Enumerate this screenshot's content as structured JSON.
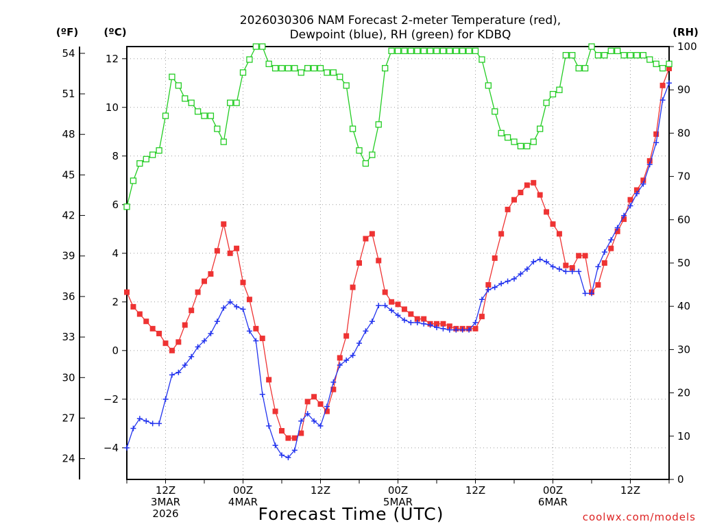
{
  "chart_data": {
    "type": "line",
    "title": [
      "2026030306 NAM Forecast 2-meter Temperature (red),",
      "Dewpoint (blue), RH (green) for KDBQ"
    ],
    "xlabel": "Forecast Time (UTC)",
    "ylabel_left_f": "(ºF)",
    "ylabel_left_c": "(ºC)",
    "ylabel_right": "(RH)",
    "credit": "coolwx.com/models",
    "x_unit": "forecast hour (0 = 2026-03-03 06Z)",
    "xlim": [
      0,
      84
    ],
    "ylim_c": [
      -5.3,
      12.5
    ],
    "ylim_f": [
      22.46,
      54.5
    ],
    "ylim_rh": [
      0,
      100
    ],
    "yticks_c": [
      -4,
      -2,
      0,
      2,
      4,
      6,
      8,
      10,
      12
    ],
    "yticks_f": [
      24,
      27,
      30,
      33,
      36,
      39,
      42,
      45,
      48,
      51,
      54
    ],
    "yticks_rh": [
      0,
      10,
      20,
      30,
      40,
      50,
      60,
      70,
      80,
      90,
      100
    ],
    "xticks": [
      {
        "x": 6,
        "lines": [
          "12Z",
          "3MAR",
          "2026"
        ]
      },
      {
        "x": 18,
        "lines": [
          "00Z",
          "4MAR"
        ]
      },
      {
        "x": 30,
        "lines": [
          "12Z"
        ]
      },
      {
        "x": 42,
        "lines": [
          "00Z",
          "5MAR"
        ]
      },
      {
        "x": 54,
        "lines": [
          "12Z"
        ]
      },
      {
        "x": 66,
        "lines": [
          "00Z",
          "6MAR"
        ]
      },
      {
        "x": 78,
        "lines": [
          "12Z"
        ]
      }
    ],
    "grid": true,
    "series": [
      {
        "name": "2-meter Temperature (ºC)",
        "color": "#ee3333",
        "marker": "filled-square",
        "axis": "celsius",
        "x": [
          0,
          1,
          2,
          3,
          4,
          5,
          6,
          7,
          8,
          9,
          10,
          11,
          12,
          13,
          14,
          15,
          16,
          17,
          18,
          19,
          20,
          21,
          22,
          23,
          24,
          25,
          26,
          27,
          28,
          29,
          30,
          31,
          32,
          33,
          34,
          35,
          36,
          37,
          38,
          39,
          40,
          41,
          42,
          43,
          44,
          45,
          46,
          47,
          48,
          49,
          50,
          51,
          52,
          53,
          54,
          55,
          56,
          57,
          58,
          59,
          60,
          61,
          62,
          63,
          64,
          65,
          66,
          67,
          68,
          69,
          70,
          71,
          72,
          73,
          74,
          75,
          76,
          77,
          78,
          79,
          80,
          81,
          82,
          83,
          84
        ],
        "values": [
          2.4,
          1.8,
          1.5,
          1.2,
          0.9,
          0.7,
          0.3,
          0.0,
          0.35,
          1.05,
          1.65,
          2.4,
          2.85,
          3.15,
          4.1,
          5.2,
          4.0,
          4.2,
          2.8,
          2.1,
          0.9,
          0.5,
          -1.2,
          -2.5,
          -3.3,
          -3.6,
          -3.6,
          -3.4,
          -2.1,
          -1.9,
          -2.2,
          -2.5,
          -1.6,
          -0.3,
          0.6,
          2.6,
          3.6,
          4.6,
          4.8,
          3.7,
          2.4,
          2.0,
          1.9,
          1.7,
          1.5,
          1.3,
          1.3,
          1.1,
          1.1,
          1.1,
          1.0,
          0.9,
          0.9,
          0.9,
          0.9,
          1.4,
          2.7,
          3.8,
          4.8,
          5.8,
          6.2,
          6.5,
          6.8,
          6.9,
          6.4,
          5.7,
          5.2,
          4.8,
          3.5,
          3.4,
          3.9,
          3.9,
          2.4,
          2.7,
          3.6,
          4.2,
          4.9,
          5.4,
          6.2,
          6.6,
          7.0,
          7.8,
          8.9,
          10.9,
          11.6
        ]
      },
      {
        "name": "Dewpoint (ºC)",
        "color": "#2233ee",
        "marker": "plus",
        "axis": "celsius",
        "x": [
          0,
          1,
          2,
          3,
          4,
          5,
          6,
          7,
          8,
          9,
          10,
          11,
          12,
          13,
          14,
          15,
          16,
          17,
          18,
          19,
          20,
          21,
          22,
          23,
          24,
          25,
          26,
          27,
          28,
          29,
          30,
          31,
          32,
          33,
          34,
          35,
          36,
          37,
          38,
          39,
          40,
          41,
          42,
          43,
          44,
          45,
          46,
          47,
          48,
          49,
          50,
          51,
          52,
          53,
          54,
          55,
          56,
          57,
          58,
          59,
          60,
          61,
          62,
          63,
          64,
          65,
          66,
          67,
          68,
          69,
          70,
          71,
          72,
          73,
          74,
          75,
          76,
          77,
          78,
          79,
          80,
          81,
          82,
          83,
          84
        ],
        "values": [
          -4.0,
          -3.2,
          -2.8,
          -2.9,
          -3.0,
          -3.0,
          -2.0,
          -1.0,
          -0.9,
          -0.6,
          -0.25,
          0.15,
          0.4,
          0.7,
          1.2,
          1.75,
          2.0,
          1.8,
          1.7,
          0.8,
          0.4,
          -1.8,
          -3.1,
          -3.9,
          -4.3,
          -4.4,
          -4.1,
          -2.9,
          -2.6,
          -2.9,
          -3.1,
          -2.3,
          -1.3,
          -0.6,
          -0.4,
          -0.2,
          0.3,
          0.8,
          1.2,
          1.85,
          1.85,
          1.65,
          1.45,
          1.25,
          1.15,
          1.15,
          1.1,
          1.05,
          0.95,
          0.9,
          0.85,
          0.85,
          0.85,
          0.85,
          1.15,
          2.1,
          2.5,
          2.6,
          2.75,
          2.85,
          2.95,
          3.15,
          3.35,
          3.65,
          3.75,
          3.65,
          3.45,
          3.35,
          3.25,
          3.25,
          3.25,
          2.35,
          2.35,
          3.45,
          4.05,
          4.55,
          5.05,
          5.55,
          5.95,
          6.45,
          6.85,
          7.65,
          8.55,
          10.3,
          11.0
        ]
      },
      {
        "name": "RH (%)",
        "color": "#22cc22",
        "marker": "open-square",
        "axis": "rh",
        "x": [
          0,
          1,
          2,
          3,
          4,
          5,
          6,
          7,
          8,
          9,
          10,
          11,
          12,
          13,
          14,
          15,
          16,
          17,
          18,
          19,
          20,
          21,
          22,
          23,
          24,
          25,
          26,
          27,
          28,
          29,
          30,
          31,
          32,
          33,
          34,
          35,
          36,
          37,
          38,
          39,
          40,
          41,
          42,
          43,
          44,
          45,
          46,
          47,
          48,
          49,
          50,
          51,
          52,
          53,
          54,
          55,
          56,
          57,
          58,
          59,
          60,
          61,
          62,
          63,
          64,
          65,
          66,
          67,
          68,
          69,
          70,
          71,
          72,
          73,
          74,
          75,
          76,
          77,
          78,
          79,
          80,
          81,
          82,
          83,
          84
        ],
        "values": [
          63,
          69,
          73,
          74,
          75,
          76,
          84,
          93,
          91,
          88,
          87,
          85,
          84,
          84,
          81,
          78,
          87,
          87,
          94,
          97,
          100,
          100,
          96,
          95,
          95,
          95,
          95,
          94,
          95,
          95,
          95,
          94,
          94,
          93,
          91,
          81,
          76,
          73,
          75,
          82,
          95,
          99,
          99,
          99,
          99,
          99,
          99,
          99,
          99,
          99,
          99,
          99,
          99,
          99,
          99,
          97,
          91,
          85,
          80,
          79,
          78,
          77,
          77,
          78,
          81,
          87,
          89,
          90,
          98,
          98,
          95,
          95,
          100,
          98,
          98,
          99,
          99,
          98,
          98,
          98,
          98,
          97,
          96,
          95,
          96
        ]
      }
    ]
  }
}
